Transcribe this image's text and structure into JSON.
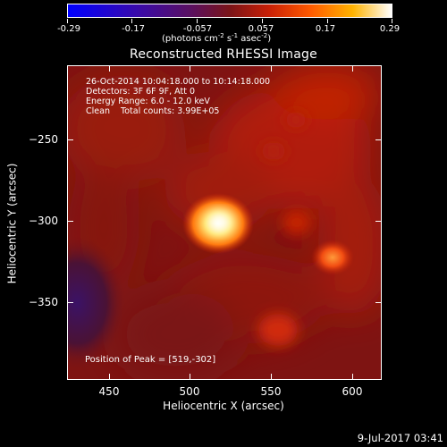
{
  "colorbar": {
    "tick_labels": [
      "-0.29",
      "-0.17",
      "-0.057",
      "0.057",
      "0.17",
      "0.29"
    ],
    "tick_values": [
      -0.29,
      -0.17,
      -0.057,
      0.057,
      0.17,
      0.29
    ],
    "units_text": "(photons cm",
    "units_exp1": "-2",
    "units_mid1": " s",
    "units_exp2": "-1",
    "units_mid2": " asec",
    "units_exp3": "-2",
    "units_end": ")",
    "colormap": [
      "#0000ff",
      "#3a0aa8",
      "#5a1060",
      "#7a1418",
      "#c81f06",
      "#ff5a00",
      "#ffb300",
      "#ffffff"
    ]
  },
  "title": "Reconstructed RHESSI Image",
  "info": {
    "line1": "26-Oct-2014 10:04:18.000 to 10:14:18.000",
    "line2": "Detectors: 3F 6F 9F, Att 0",
    "line3": "Energy Range: 6.0 - 12.0 keV",
    "line4": "Clean    Total counts: 3.99E+05"
  },
  "peak_text": "Position of Peak = [519,-302]",
  "axes": {
    "x_title": "Heliocentric X (arcsec)",
    "y_title": "Heliocentric Y (arcsec)",
    "x_tick_labels": [
      "450",
      "500",
      "550",
      "600"
    ],
    "y_tick_labels": [
      "−250",
      "−300",
      "−350"
    ]
  },
  "timestamp": "9-Jul-2017 03:41"
}
